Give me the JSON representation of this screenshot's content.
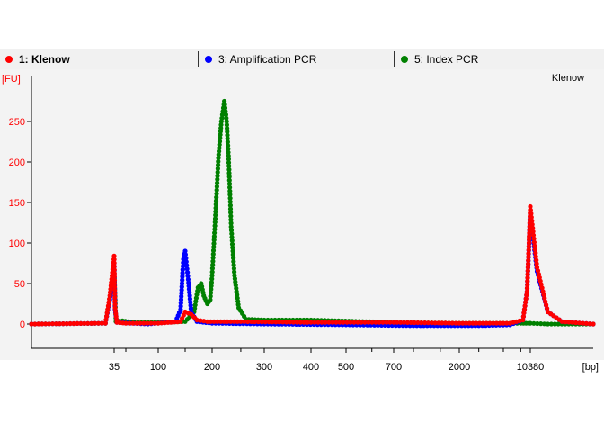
{
  "legend": [
    {
      "label": "1: Klenow",
      "color": "#ff0000",
      "bold": true
    },
    {
      "label": "3: Amplification PCR",
      "color": "#0000ff",
      "bold": false
    },
    {
      "label": "5: Index PCR",
      "color": "#008000",
      "bold": false
    }
  ],
  "chart_data": {
    "type": "line",
    "title": "Klenow",
    "ylabel": "[FU]",
    "xlabel": "[bp]",
    "ylim": [
      -30,
      290
    ],
    "yticks": [
      0,
      50,
      100,
      150,
      200,
      250
    ],
    "xticks": [
      "35",
      "100",
      "200",
      "300",
      "400",
      "500",
      "700",
      "2000",
      "10380"
    ],
    "grid": false,
    "legend_position": "top",
    "series": [
      {
        "name": "1: Klenow",
        "color": "#ff0000",
        "x": [
          20,
          33,
          34,
          35,
          36,
          38,
          50,
          100,
          140,
          150,
          160,
          170,
          190,
          250,
          400,
          700,
          2000,
          6000,
          8500,
          9500,
          10000,
          10380,
          10800,
          11500,
          12500,
          15000
        ],
        "y": [
          0,
          1,
          35,
          84,
          20,
          2,
          1,
          1,
          3,
          15,
          12,
          5,
          3,
          3,
          2,
          2,
          1,
          1,
          5,
          40,
          100,
          145,
          70,
          15,
          3,
          0
        ]
      },
      {
        "name": "3: Amplification PCR",
        "color": "#0000ff",
        "x": [
          20,
          33,
          34,
          35,
          36,
          38,
          80,
          130,
          140,
          143,
          146,
          150,
          155,
          160,
          170,
          200,
          300,
          500,
          1000,
          3000,
          6000,
          8500,
          9500,
          10000,
          10380,
          10800,
          11500,
          12500,
          15000
        ],
        "y": [
          0,
          1,
          30,
          75,
          18,
          2,
          0,
          3,
          18,
          50,
          80,
          90,
          55,
          15,
          3,
          1,
          0,
          -1,
          -2,
          -2,
          -1,
          5,
          40,
          95,
          135,
          65,
          15,
          3,
          0
        ]
      },
      {
        "name": "5: Index PCR",
        "color": "#008000",
        "x": [
          20,
          33,
          35,
          37,
          45,
          60,
          100,
          150,
          165,
          172,
          178,
          183,
          190,
          196,
          200,
          205,
          210,
          215,
          220,
          224,
          228,
          232,
          238,
          246,
          260,
          300,
          400,
          700,
          2000,
          5000,
          8000,
          10000,
          10380,
          11500,
          15000
        ],
        "y": [
          0,
          1,
          65,
          3,
          4,
          2,
          2,
          3,
          15,
          45,
          50,
          35,
          25,
          30,
          60,
          130,
          205,
          250,
          275,
          250,
          195,
          120,
          60,
          20,
          6,
          5,
          5,
          2,
          1,
          1,
          1,
          1,
          1,
          0,
          0
        ]
      }
    ]
  }
}
